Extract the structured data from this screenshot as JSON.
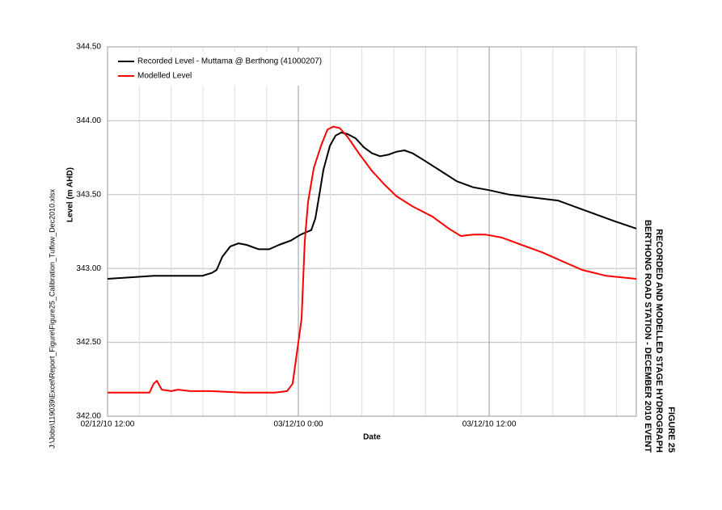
{
  "chart_data": {
    "type": "line",
    "title": "FIGURE 25",
    "subtitle": [
      "RECORDED AND MODELLED STAGE HYDROGRAPH",
      "BERTHONG ROAD STATION - DECEMBER 2010 EVENT"
    ],
    "file_path": "J:\\Jobs\\119039\\Excel\\Report_Figure\\Figure25_Calibration_Tuflow_Dec2010.xlsx",
    "x_label": "Date",
    "y_label": "Level (m AHD)",
    "xlim": [
      0,
      33.25
    ],
    "xticks": [
      {
        "value": 0,
        "label": "02/12/10 12:00"
      },
      {
        "value": 12,
        "label": "03/12/10 0:00"
      },
      {
        "value": 24,
        "label": "03/12/10 12:00"
      }
    ],
    "xminor": [
      2,
      4,
      6,
      8,
      10,
      14,
      16,
      18,
      20,
      22,
      26,
      28,
      30,
      32
    ],
    "ylim": [
      342,
      344.5
    ],
    "yticks": [
      {
        "value": 342,
        "label": "342.00"
      },
      {
        "value": 342.5,
        "label": "342.50"
      },
      {
        "value": 343,
        "label": "343.00"
      },
      {
        "value": 343.5,
        "label": "343.50"
      },
      {
        "value": 344,
        "label": "344.00"
      },
      {
        "value": 344.5,
        "label": "344.50"
      }
    ],
    "grid": true,
    "legend": "top-left",
    "series": [
      {
        "name": "Recorded Level - Muttama @ Berthong (41000207)",
        "color": "#000000",
        "x": [
          0,
          1.37,
          2.9,
          4.42,
          5.95,
          6.56,
          6.86,
          7.22,
          7.73,
          8.24,
          8.75,
          9.51,
          10.17,
          10.78,
          11.54,
          12.15,
          12.81,
          13.07,
          13.32,
          13.58,
          13.98,
          14.34,
          14.7,
          15.1,
          15.61,
          16.12,
          16.63,
          17.14,
          17.65,
          18.16,
          18.67,
          19.18,
          19.94,
          20.96,
          21.97,
          22.99,
          24.0,
          25.27,
          26.8,
          28.32,
          29.34,
          30.61,
          31.88,
          33.25
        ],
        "values": [
          342.93,
          342.94,
          342.95,
          342.95,
          342.95,
          342.97,
          342.99,
          343.08,
          343.15,
          343.17,
          343.16,
          343.13,
          343.13,
          343.16,
          343.19,
          343.23,
          343.26,
          343.34,
          343.5,
          343.67,
          343.83,
          343.9,
          343.92,
          343.91,
          343.88,
          343.82,
          343.78,
          343.76,
          343.77,
          343.79,
          343.8,
          343.78,
          343.73,
          343.66,
          343.59,
          343.55,
          343.53,
          343.5,
          343.48,
          343.46,
          343.42,
          343.37,
          343.32,
          343.27
        ]
      },
      {
        "name": "Modelled Level",
        "color": "#ff0000",
        "x": [
          0,
          2.64,
          2.9,
          3.1,
          3.41,
          4.02,
          4.42,
          5.19,
          6.46,
          8.49,
          10.53,
          11.29,
          11.64,
          11.95,
          12.2,
          12.4,
          12.61,
          12.97,
          13.42,
          13.83,
          14.19,
          14.6,
          15.1,
          15.87,
          16.63,
          17.4,
          18.16,
          19.18,
          20.45,
          21.46,
          22.22,
          22.99,
          23.75,
          24.77,
          26.04,
          27.31,
          28.58,
          29.85,
          31.37,
          33.25
        ],
        "values": [
          342.16,
          342.16,
          342.22,
          342.24,
          342.18,
          342.17,
          342.18,
          342.17,
          342.17,
          342.16,
          342.16,
          342.17,
          342.22,
          342.46,
          342.66,
          343.18,
          343.45,
          343.68,
          343.83,
          343.94,
          343.96,
          343.95,
          343.89,
          343.77,
          343.66,
          343.57,
          343.49,
          343.42,
          343.35,
          343.27,
          343.22,
          343.23,
          343.23,
          343.21,
          343.16,
          343.11,
          343.05,
          342.99,
          342.95,
          342.93
        ]
      }
    ]
  }
}
